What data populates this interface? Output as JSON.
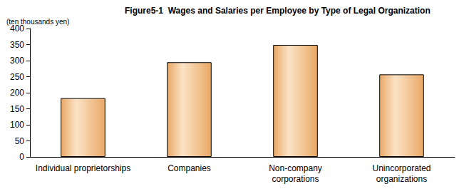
{
  "chart_data": {
    "type": "bar",
    "title": "Figure5-1  Wages and Salaries per Employee by Type of Legal Organization",
    "y_label": "(ten thousands yen)",
    "categories": [
      "Individual proprietorships",
      "Companies",
      "Non-company\ncorporations",
      "Unincorporated\norganizations"
    ],
    "values": [
      183,
      295,
      349,
      257
    ],
    "color": "#eaa866",
    "ylim": [
      0,
      400
    ],
    "yticks": [
      0,
      50,
      100,
      150,
      200,
      250,
      300,
      350,
      400
    ],
    "grid": false
  }
}
